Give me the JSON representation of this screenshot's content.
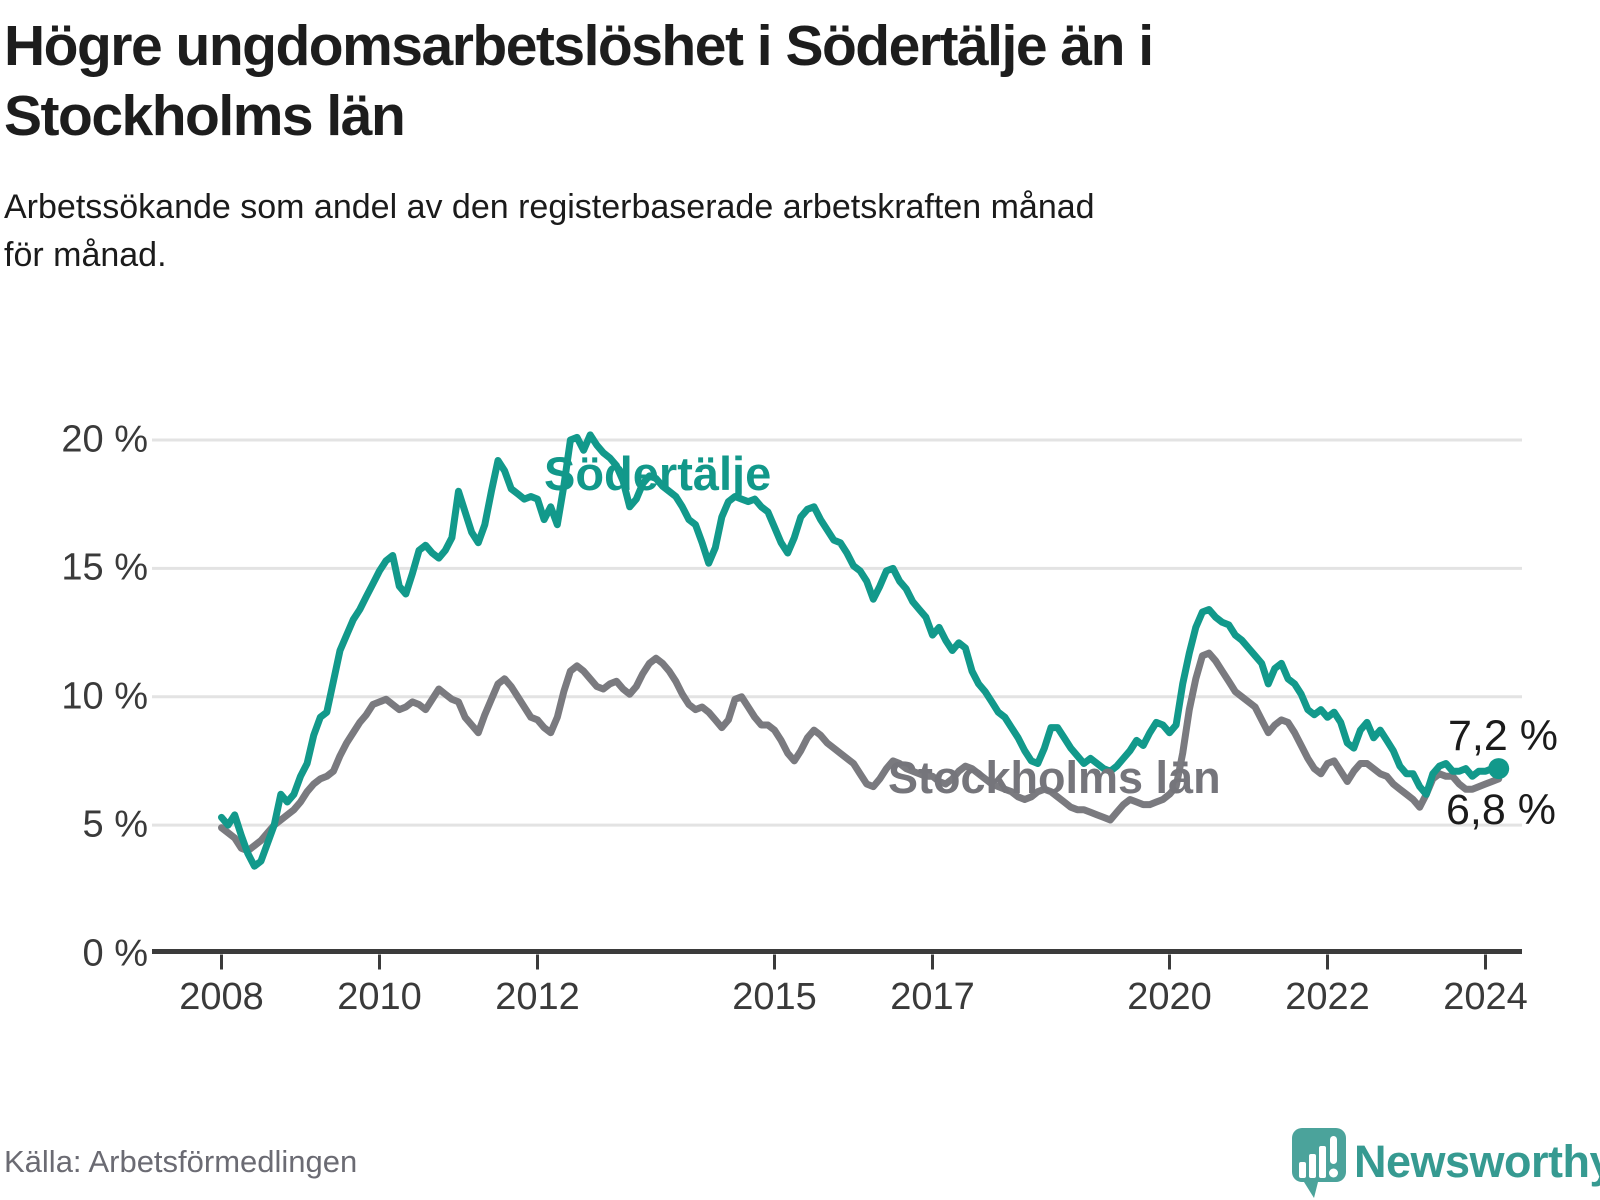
{
  "header": {
    "title_lines": [
      "Högre ungdomsarbetslöshet i Södertälje än i",
      "Stockholms län"
    ],
    "subtitle_lines": [
      "Arbetssökande som andel av den registerbaserade arbetskraften månad",
      "för månad."
    ]
  },
  "footer": {
    "source": "Källa: Arbetsförmedlingen",
    "brand": "Newsworthy"
  },
  "colors": {
    "sodertalje": "#12998b",
    "stockholm": "#7a7a7f",
    "gridline": "#e3e3e3",
    "axis": "#3b3b3b",
    "logo_pin": "#4ba39b",
    "logo_text": "#369a91"
  },
  "chart_data": {
    "type": "line",
    "title": "Högre ungdomsarbetslöshet i Södertälje än i Stockholms län",
    "subtitle": "Arbetssökande som andel av den registerbaserade arbetskraften månad för månad.",
    "source": "Källa: Arbetsförmedlingen",
    "unit": "%",
    "frequency": "monthly",
    "x_start": "2008-01",
    "x_end": "2024-03",
    "ylim": [
      0,
      20.5
    ],
    "grid": "horizontal",
    "legend_position": "inline-labels",
    "yticks": [
      0,
      5,
      10,
      15,
      20
    ],
    "ytick_labels": [
      "0 %",
      "5 %",
      "10 %",
      "15 %",
      "20 %"
    ],
    "xticks": [
      2008,
      2010,
      2012,
      2015,
      2017,
      2020,
      2022,
      2024
    ],
    "xtick_labels": [
      "2008",
      "2010",
      "2012",
      "2015",
      "2017",
      "2020",
      "2022",
      "2024"
    ],
    "series": [
      {
        "name": "Södertälje",
        "color": "#12998b",
        "end_label": "7,2 %",
        "end_value": 7.2,
        "values": [
          5.3,
          5.0,
          5.4,
          4.6,
          3.9,
          3.4,
          3.6,
          4.3,
          5.0,
          6.2,
          5.9,
          6.2,
          6.9,
          7.4,
          8.5,
          9.2,
          9.4,
          10.6,
          11.8,
          12.4,
          13.0,
          13.4,
          13.9,
          14.4,
          14.9,
          15.3,
          15.5,
          14.3,
          14.0,
          14.8,
          15.7,
          15.9,
          15.6,
          15.4,
          15.7,
          16.2,
          18.0,
          17.2,
          16.4,
          16.0,
          16.7,
          18.0,
          19.2,
          18.8,
          18.1,
          17.9,
          17.7,
          17.8,
          17.7,
          16.9,
          17.4,
          16.7,
          18.2,
          20.0,
          20.1,
          19.6,
          20.2,
          19.8,
          19.5,
          19.3,
          19.0,
          18.4,
          17.4,
          17.7,
          18.3,
          18.6,
          18.5,
          18.2,
          18.0,
          17.8,
          17.4,
          16.9,
          16.7,
          16.0,
          15.2,
          15.8,
          17.0,
          17.6,
          17.8,
          17.7,
          17.6,
          17.7,
          17.4,
          17.2,
          16.6,
          16.0,
          15.6,
          16.2,
          17.0,
          17.3,
          17.4,
          16.9,
          16.5,
          16.1,
          16.0,
          15.6,
          15.1,
          14.9,
          14.5,
          13.8,
          14.3,
          14.9,
          15.0,
          14.5,
          14.2,
          13.7,
          13.4,
          13.1,
          12.4,
          12.7,
          12.2,
          11.8,
          12.1,
          11.9,
          11.0,
          10.5,
          10.2,
          9.8,
          9.4,
          9.2,
          8.8,
          8.4,
          7.9,
          7.5,
          7.4,
          8.0,
          8.8,
          8.8,
          8.4,
          8.0,
          7.7,
          7.4,
          7.6,
          7.4,
          7.2,
          7.1,
          7.3,
          7.6,
          7.9,
          8.3,
          8.1,
          8.6,
          9.0,
          8.9,
          8.6,
          8.9,
          10.5,
          11.7,
          12.7,
          13.3,
          13.4,
          13.1,
          12.9,
          12.8,
          12.4,
          12.2,
          11.9,
          11.6,
          11.3,
          10.5,
          11.1,
          11.3,
          10.7,
          10.5,
          10.1,
          9.5,
          9.3,
          9.5,
          9.2,
          9.4,
          9.0,
          8.2,
          8.0,
          8.7,
          9.0,
          8.4,
          8.7,
          8.3,
          7.9,
          7.3,
          7.0,
          7.0,
          6.5,
          6.2,
          7.0,
          7.3,
          7.4,
          7.1,
          7.1,
          7.2,
          6.9,
          7.1,
          7.1,
          7.2,
          7.2
        ]
      },
      {
        "name": "Stockholms län",
        "color": "#7a7a7f",
        "end_label": "6,8 %",
        "end_value": 6.8,
        "values": [
          4.9,
          4.7,
          4.5,
          4.1,
          4.0,
          4.2,
          4.4,
          4.7,
          5.0,
          5.2,
          5.4,
          5.6,
          5.9,
          6.3,
          6.6,
          6.8,
          6.9,
          7.1,
          7.7,
          8.2,
          8.6,
          9.0,
          9.3,
          9.7,
          9.8,
          9.9,
          9.7,
          9.5,
          9.6,
          9.8,
          9.7,
          9.5,
          9.9,
          10.3,
          10.1,
          9.9,
          9.8,
          9.2,
          8.9,
          8.6,
          9.3,
          9.9,
          10.5,
          10.7,
          10.4,
          10.0,
          9.6,
          9.2,
          9.1,
          8.8,
          8.6,
          9.2,
          10.2,
          11.0,
          11.2,
          11.0,
          10.7,
          10.4,
          10.3,
          10.5,
          10.6,
          10.3,
          10.1,
          10.4,
          10.9,
          11.3,
          11.5,
          11.3,
          11.0,
          10.6,
          10.1,
          9.7,
          9.5,
          9.6,
          9.4,
          9.1,
          8.8,
          9.1,
          9.9,
          10.0,
          9.6,
          9.2,
          8.9,
          8.9,
          8.7,
          8.3,
          7.8,
          7.5,
          7.9,
          8.4,
          8.7,
          8.5,
          8.2,
          8.0,
          7.8,
          7.6,
          7.4,
          7.0,
          6.6,
          6.5,
          6.8,
          7.2,
          7.5,
          7.4,
          7.2,
          7.1,
          7.0,
          6.9,
          6.9,
          6.7,
          6.6,
          6.8,
          7.1,
          7.3,
          7.2,
          7.0,
          6.8,
          6.6,
          6.5,
          6.4,
          6.3,
          6.1,
          6.0,
          6.1,
          6.3,
          6.4,
          6.3,
          6.1,
          5.9,
          5.7,
          5.6,
          5.6,
          5.5,
          5.4,
          5.3,
          5.2,
          5.5,
          5.8,
          6.0,
          5.9,
          5.8,
          5.8,
          5.9,
          6.0,
          6.2,
          6.5,
          7.8,
          9.5,
          10.7,
          11.6,
          11.7,
          11.4,
          11.0,
          10.6,
          10.2,
          10.0,
          9.8,
          9.6,
          9.1,
          8.6,
          8.9,
          9.1,
          9.0,
          8.6,
          8.1,
          7.6,
          7.2,
          7.0,
          7.4,
          7.5,
          7.1,
          6.7,
          7.1,
          7.4,
          7.4,
          7.2,
          7.0,
          6.9,
          6.6,
          6.4,
          6.2,
          6.0,
          5.7,
          6.2,
          6.8,
          7.0,
          6.9,
          6.9,
          6.6,
          6.4,
          6.4,
          6.5,
          6.6,
          6.7,
          6.8
        ]
      }
    ]
  }
}
